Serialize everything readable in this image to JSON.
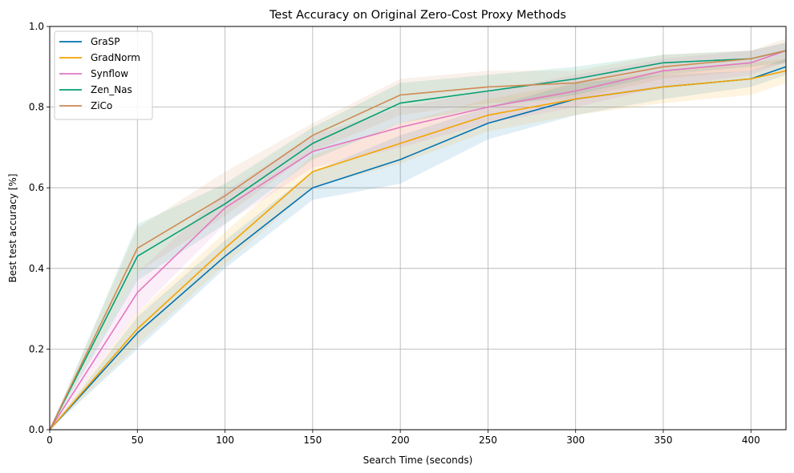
{
  "chart_data": {
    "type": "line",
    "title": "Test Accuracy on Original Zero-Cost Proxy Methods",
    "xlabel": "Search Time (seconds)",
    "ylabel": "Best test accuracy [%]",
    "xlim": [
      0,
      420
    ],
    "ylim": [
      0,
      1.0
    ],
    "xticks": [
      0,
      50,
      100,
      150,
      200,
      250,
      300,
      350,
      400
    ],
    "yticks": [
      0.0,
      0.2,
      0.4,
      0.6,
      0.8,
      1.0
    ],
    "grid": true,
    "legend_position": "top-left",
    "x": [
      0,
      50,
      100,
      150,
      200,
      250,
      300,
      350,
      400,
      420
    ],
    "series": [
      {
        "name": "GraSP",
        "color": "#0072b2",
        "values": [
          0.0,
          0.24,
          0.43,
          0.6,
          0.67,
          0.76,
          0.82,
          0.85,
          0.87,
          0.9
        ],
        "lower": [
          0.0,
          0.2,
          0.4,
          0.57,
          0.61,
          0.72,
          0.78,
          0.82,
          0.85,
          0.88
        ],
        "upper": [
          0.0,
          0.28,
          0.47,
          0.64,
          0.73,
          0.8,
          0.86,
          0.88,
          0.89,
          0.92
        ]
      },
      {
        "name": "GradNorm",
        "color": "#f5a300",
        "values": [
          0.0,
          0.25,
          0.45,
          0.64,
          0.71,
          0.78,
          0.82,
          0.85,
          0.87,
          0.89
        ],
        "lower": [
          0.0,
          0.21,
          0.41,
          0.6,
          0.66,
          0.74,
          0.78,
          0.81,
          0.83,
          0.86
        ],
        "upper": [
          0.0,
          0.29,
          0.49,
          0.68,
          0.76,
          0.82,
          0.86,
          0.89,
          0.91,
          0.92
        ]
      },
      {
        "name": "Synflow",
        "color": "#e377c2",
        "values": [
          0.0,
          0.34,
          0.55,
          0.69,
          0.75,
          0.8,
          0.84,
          0.89,
          0.91,
          0.94
        ],
        "lower": [
          0.0,
          0.29,
          0.51,
          0.65,
          0.7,
          0.76,
          0.8,
          0.85,
          0.88,
          0.91
        ],
        "upper": [
          0.0,
          0.39,
          0.59,
          0.73,
          0.8,
          0.84,
          0.88,
          0.92,
          0.94,
          0.96
        ]
      },
      {
        "name": "Zen_Nas",
        "color": "#029e73",
        "values": [
          0.0,
          0.43,
          0.56,
          0.71,
          0.81,
          0.84,
          0.87,
          0.91,
          0.92,
          0.94
        ],
        "lower": [
          0.0,
          0.37,
          0.51,
          0.67,
          0.76,
          0.8,
          0.83,
          0.88,
          0.9,
          0.91
        ],
        "upper": [
          0.0,
          0.51,
          0.61,
          0.75,
          0.86,
          0.88,
          0.9,
          0.93,
          0.94,
          0.96
        ]
      },
      {
        "name": "ZiCo",
        "color": "#d08a53",
        "values": [
          0.0,
          0.45,
          0.58,
          0.73,
          0.83,
          0.85,
          0.86,
          0.9,
          0.92,
          0.94
        ],
        "lower": [
          0.0,
          0.39,
          0.53,
          0.69,
          0.78,
          0.81,
          0.82,
          0.87,
          0.89,
          0.91
        ],
        "upper": [
          0.0,
          0.5,
          0.64,
          0.76,
          0.87,
          0.89,
          0.89,
          0.93,
          0.94,
          0.97
        ]
      }
    ]
  }
}
